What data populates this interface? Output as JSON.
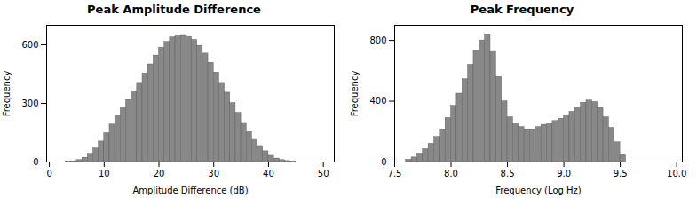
{
  "chart_data": [
    {
      "type": "histogram",
      "title": "Peak Amplitude Difference",
      "xlabel": "Amplitude Difference (dB)",
      "ylabel": "Frequency",
      "xlim": [
        -0.5,
        52
      ],
      "ylim": [
        0,
        700
      ],
      "xticks": [
        0,
        10,
        20,
        30,
        40,
        50
      ],
      "yticks": [
        0,
        300,
        600
      ],
      "bins": [
        3,
        4,
        5,
        6,
        7,
        8,
        9,
        10,
        11,
        12,
        13,
        14,
        15,
        16,
        17,
        18,
        19,
        20,
        21,
        22,
        23,
        24,
        25,
        26,
        27,
        28,
        29,
        30,
        31,
        32,
        33,
        34,
        35,
        36,
        37,
        38,
        39,
        40,
        41,
        42,
        43,
        44,
        45
      ],
      "values": [
        2,
        4,
        10,
        22,
        42,
        70,
        105,
        148,
        192,
        238,
        278,
        318,
        360,
        405,
        453,
        500,
        545,
        585,
        615,
        638,
        648,
        650,
        645,
        625,
        595,
        555,
        508,
        458,
        405,
        355,
        302,
        252,
        200,
        158,
        118,
        82,
        55,
        32,
        18,
        10,
        5,
        2
      ],
      "color": "#888888",
      "grid": false
    },
    {
      "type": "histogram",
      "title": "Peak Frequency",
      "xlabel": "Frequency (Log Hz)",
      "ylabel": "Frequency",
      "xlim": [
        7.5,
        10.05
      ],
      "ylim": [
        0,
        900
      ],
      "xticks": [
        7.5,
        {
          "value": 8,
          "label": "8.0"
        },
        8.5,
        {
          "value": 9,
          "label": "9.0"
        },
        9.5,
        {
          "value": 10,
          "label": "10.0"
        }
      ],
      "yticks": [
        0,
        400,
        800
      ],
      "bins": [
        7.6,
        7.65,
        7.7,
        7.75,
        7.8,
        7.85,
        7.9,
        7.95,
        8.0,
        8.05,
        8.1,
        8.15,
        8.2,
        8.25,
        8.3,
        8.35,
        8.4,
        8.45,
        8.5,
        8.55,
        8.6,
        8.65,
        8.7,
        8.75,
        8.8,
        8.85,
        8.9,
        8.95,
        9.0,
        9.05,
        9.1,
        9.15,
        9.2,
        9.25,
        9.3,
        9.35,
        9.4,
        9.45,
        9.5,
        9.55
      ],
      "values": [
        15,
        30,
        55,
        85,
        120,
        165,
        215,
        290,
        370,
        450,
        545,
        640,
        735,
        800,
        840,
        730,
        560,
        400,
        295,
        255,
        230,
        215,
        215,
        230,
        245,
        255,
        270,
        285,
        305,
        330,
        360,
        390,
        405,
        395,
        355,
        295,
        225,
        130,
        45
      ],
      "color": "#888888",
      "grid": false
    }
  ]
}
